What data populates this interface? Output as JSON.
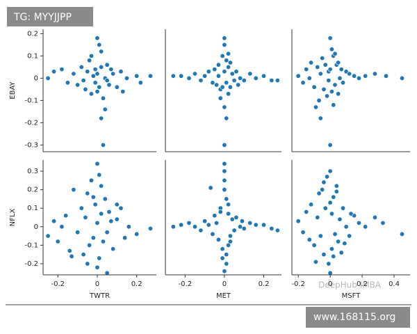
{
  "chart_data": [
    {
      "type": "scatter",
      "ylabel": "EBAY",
      "color": "#1f77b4",
      "ylim": [
        -0.33,
        0.22
      ],
      "yticks": [
        0.2,
        0.1,
        0.0,
        -0.1,
        -0.2,
        -0.3
      ],
      "xlim": [
        -0.275,
        0.3
      ],
      "x": [
        -0.25,
        -0.22,
        -0.18,
        -0.15,
        -0.12,
        -0.1,
        -0.08,
        -0.06,
        -0.05,
        -0.04,
        -0.03,
        -0.02,
        -0.01,
        0.0,
        0.0,
        0.01,
        0.02,
        0.02,
        0.03,
        0.04,
        0.05,
        0.06,
        0.08,
        0.1,
        0.12,
        0.15,
        0.2,
        0.22,
        0.27,
        0.03,
        0.02,
        0.04,
        -0.03,
        0.01,
        -0.07,
        0.07,
        0.0,
        -0.01,
        0.05,
        0.13
      ],
      "y": [
        0.0,
        0.03,
        0.04,
        -0.02,
        0.02,
        -0.03,
        0.05,
        -0.05,
        0.03,
        0.08,
        -0.07,
        0.01,
        -0.02,
        0.18,
        0.02,
        -0.04,
        0.12,
        0.05,
        -0.09,
        0.0,
        0.06,
        -0.03,
        0.02,
        -0.04,
        0.03,
        0.0,
        0.01,
        -0.02,
        0.01,
        -0.3,
        -0.18,
        -0.14,
        0.1,
        0.15,
        -0.01,
        0.04,
        -0.06,
        0.04,
        -0.01,
        -0.06
      ]
    },
    {
      "type": "scatter",
      "color": "#1f77b4",
      "xlim": [
        -0.3,
        0.29
      ],
      "ylim": [
        -0.33,
        0.22
      ],
      "x": [
        -0.26,
        -0.22,
        -0.18,
        -0.15,
        -0.12,
        -0.1,
        -0.08,
        -0.06,
        -0.05,
        -0.04,
        -0.03,
        -0.02,
        -0.01,
        0.0,
        0.0,
        0.0,
        0.0,
        0.01,
        0.01,
        0.02,
        0.02,
        0.03,
        0.04,
        0.05,
        0.06,
        0.08,
        0.1,
        0.13,
        0.16,
        0.2,
        0.24,
        0.27,
        -0.02,
        0.02,
        0.0,
        -0.01,
        0.01,
        0.03,
        -0.03,
        0.07
      ],
      "y": [
        0.01,
        0.01,
        0.0,
        0.02,
        -0.01,
        0.01,
        0.03,
        -0.02,
        0.04,
        -0.03,
        0.06,
        -0.05,
        0.1,
        0.18,
        0.15,
        -0.3,
        -0.13,
        -0.18,
        0.08,
        -0.07,
        0.05,
        -0.04,
        0.02,
        -0.01,
        0.03,
        0.0,
        -0.01,
        0.02,
        0.0,
        0.01,
        -0.01,
        -0.01,
        -0.09,
        0.11,
        0.03,
        -0.04,
        -0.02,
        0.07,
        0.01,
        -0.03
      ]
    },
    {
      "type": "scatter",
      "color": "#1f77b4",
      "xlim": [
        -0.24,
        0.5
      ],
      "ylim": [
        -0.33,
        0.22
      ],
      "x": [
        -0.2,
        -0.17,
        -0.15,
        -0.13,
        -0.12,
        -0.1,
        -0.08,
        -0.07,
        -0.06,
        -0.05,
        -0.04,
        -0.03,
        -0.02,
        -0.01,
        0.0,
        0.0,
        0.01,
        0.01,
        0.02,
        0.03,
        0.04,
        0.05,
        0.06,
        0.07,
        0.08,
        0.1,
        0.12,
        0.15,
        0.18,
        0.22,
        0.28,
        0.35,
        0.45,
        0.0,
        -0.01,
        -0.06,
        0.02,
        -0.09,
        0.05,
        0.03
      ],
      "y": [
        0.01,
        -0.02,
        0.04,
        0.0,
        0.07,
        -0.04,
        0.05,
        -0.1,
        0.02,
        0.09,
        -0.05,
        0.06,
        -0.08,
        0.03,
        0.18,
        -0.3,
        0.13,
        -0.06,
        0.1,
        -0.03,
        0.06,
        -0.07,
        0.0,
        0.04,
        -0.02,
        0.03,
        0.02,
        0.01,
        0.0,
        0.01,
        0.02,
        0.01,
        0.0,
        0.04,
        -0.01,
        -0.18,
        -0.12,
        -0.13,
        0.07,
        0.11
      ]
    },
    {
      "type": "scatter",
      "ylabel": "NFLX",
      "xlabel": "TWTR",
      "color": "#1f77b4",
      "xlim": [
        -0.275,
        0.3
      ],
      "ylim": [
        -0.26,
        0.36
      ],
      "xticks": [
        -0.2,
        0.0,
        0.2
      ],
      "yticks": [
        0.3,
        0.2,
        0.1,
        0.0,
        -0.1,
        -0.2
      ],
      "x": [
        -0.25,
        -0.22,
        -0.2,
        -0.18,
        -0.16,
        -0.14,
        -0.12,
        -0.1,
        -0.08,
        -0.07,
        -0.06,
        -0.05,
        -0.04,
        -0.03,
        -0.02,
        -0.01,
        0.0,
        0.0,
        0.0,
        0.01,
        0.01,
        0.02,
        0.03,
        0.04,
        0.05,
        0.06,
        0.08,
        0.1,
        0.12,
        0.14,
        0.16,
        0.2,
        0.27,
        -0.13,
        -0.05,
        0.02,
        0.05,
        -0.02,
        0.07,
        0.1
      ],
      "y": [
        -0.05,
        0.03,
        -0.08,
        0.0,
        0.06,
        -0.13,
        0.2,
        -0.03,
        0.1,
        -0.15,
        0.05,
        0.18,
        -0.1,
        0.25,
        -0.06,
        0.12,
        0.34,
        -0.22,
        0.02,
        0.28,
        -0.17,
        0.07,
        -0.08,
        0.15,
        -0.03,
        0.08,
        -0.12,
        0.04,
        0.1,
        -0.06,
        0.0,
        -0.04,
        -0.01,
        -0.16,
        -0.2,
        0.22,
        -0.25,
        0.16,
        0.03,
        0.12
      ]
    },
    {
      "type": "scatter",
      "xlabel": "MET",
      "color": "#1f77b4",
      "xlim": [
        -0.3,
        0.29
      ],
      "ylim": [
        -0.26,
        0.36
      ],
      "xticks": [
        -0.2,
        0.0,
        0.2
      ],
      "x": [
        -0.26,
        -0.22,
        -0.18,
        -0.15,
        -0.12,
        -0.1,
        -0.08,
        -0.06,
        -0.05,
        -0.04,
        -0.03,
        -0.02,
        -0.01,
        0.0,
        0.0,
        0.0,
        0.0,
        0.01,
        0.01,
        0.02,
        0.02,
        0.03,
        0.04,
        0.05,
        0.06,
        0.08,
        0.1,
        0.13,
        0.16,
        0.2,
        0.24,
        0.27,
        -0.07,
        0.0,
        0.01,
        -0.01,
        0.02,
        -0.02,
        0.03,
        0.09
      ],
      "y": [
        0.0,
        0.01,
        0.02,
        0.0,
        -0.02,
        0.03,
        0.01,
        -0.04,
        0.06,
        0.02,
        -0.07,
        0.1,
        -0.12,
        0.34,
        0.3,
        -0.24,
        0.2,
        -0.2,
        0.15,
        -0.1,
        0.07,
        -0.05,
        0.04,
        -0.02,
        0.05,
        0.0,
        -0.01,
        0.02,
        0.01,
        0.01,
        -0.01,
        -0.02,
        0.21,
        0.25,
        -0.15,
        -0.17,
        0.12,
        0.08,
        -0.08,
        0.03
      ]
    },
    {
      "type": "scatter",
      "xlabel": "MSFT",
      "color": "#1f77b4",
      "xlim": [
        -0.24,
        0.5
      ],
      "ylim": [
        -0.26,
        0.36
      ],
      "xticks": [
        -0.2,
        0.0,
        0.2,
        0.4
      ],
      "x": [
        -0.2,
        -0.17,
        -0.15,
        -0.13,
        -0.12,
        -0.1,
        -0.08,
        -0.07,
        -0.06,
        -0.05,
        -0.04,
        -0.03,
        -0.02,
        -0.01,
        0.0,
        0.0,
        0.01,
        0.01,
        0.02,
        0.03,
        0.04,
        0.05,
        0.06,
        0.07,
        0.08,
        0.1,
        0.12,
        0.15,
        0.18,
        0.22,
        0.28,
        0.33,
        0.45,
        0.0,
        -0.09,
        0.04,
        0.02,
        -0.04,
        0.09,
        0.13
      ],
      "y": [
        0.03,
        -0.03,
        0.08,
        -0.07,
        0.12,
        -0.1,
        0.05,
        0.18,
        -0.05,
        0.2,
        -0.15,
        0.1,
        0.27,
        -0.2,
        0.3,
        -0.25,
        0.07,
        -0.12,
        0.16,
        -0.04,
        0.22,
        -0.08,
        0.04,
        -0.14,
        0.1,
        0.0,
        -0.05,
        0.06,
        0.02,
        0.0,
        0.05,
        0.02,
        -0.04,
        0.13,
        -0.19,
        0.19,
        -0.16,
        0.24,
        -0.09,
        0.07
      ]
    }
  ],
  "watermarks": [
    "TG: MYYJJPP",
    "DeepHub IMBA",
    "www.168115.org"
  ]
}
